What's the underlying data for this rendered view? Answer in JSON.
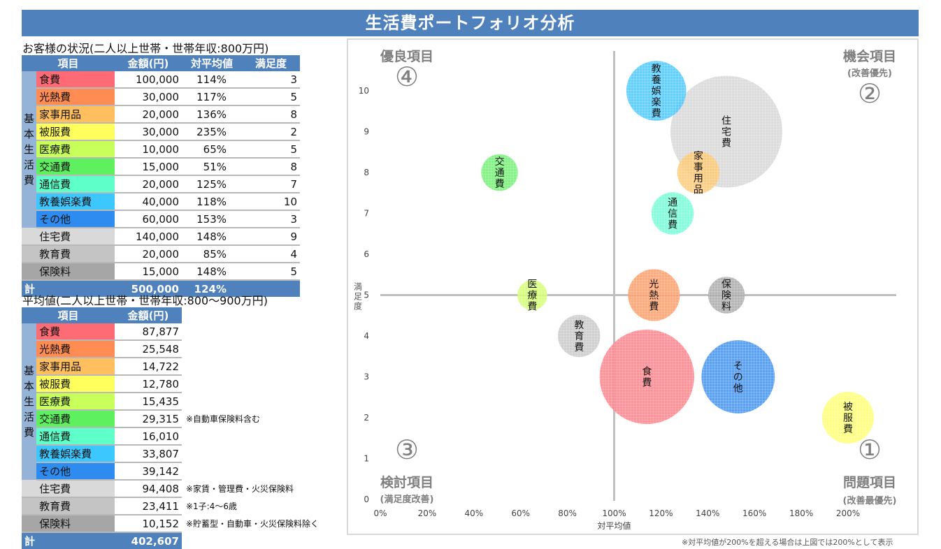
{
  "title": "生活費ポートフォリオ分析",
  "customer": {
    "heading": "お客様の状況(二人以上世帯・世帯年収:800万円)",
    "headers": [
      "項目",
      "金額(円)",
      "対平均値",
      "満足度"
    ],
    "group_label": "基\n本\n生\n活\n費",
    "rows": [
      {
        "name": "食費",
        "amount": "100,000",
        "ratio": "114%",
        "satisfaction": "3",
        "color": "#ff6b74"
      },
      {
        "name": "光熱費",
        "amount": "30,000",
        "ratio": "117%",
        "satisfaction": "5",
        "color": "#ff8c52"
      },
      {
        "name": "家事用品",
        "amount": "20,000",
        "ratio": "136%",
        "satisfaction": "8",
        "color": "#ffbf5e"
      },
      {
        "name": "被服費",
        "amount": "30,000",
        "ratio": "235%",
        "satisfaction": "2",
        "color": "#ffff5e"
      },
      {
        "name": "医療費",
        "amount": "10,000",
        "ratio": "65%",
        "satisfaction": "5",
        "color": "#c8ff5a"
      },
      {
        "name": "交通費",
        "amount": "15,000",
        "ratio": "51%",
        "satisfaction": "8",
        "color": "#5ef05e"
      },
      {
        "name": "通信費",
        "amount": "20,000",
        "ratio": "125%",
        "satisfaction": "7",
        "color": "#5effc8"
      },
      {
        "name": "教養娯楽費",
        "amount": "40,000",
        "ratio": "118%",
        "satisfaction": "10",
        "color": "#3cc8ff"
      },
      {
        "name": "その他",
        "amount": "60,000",
        "ratio": "153%",
        "satisfaction": "3",
        "color": "#2e8bf0"
      },
      {
        "name": "住宅費",
        "amount": "140,000",
        "ratio": "148%",
        "satisfaction": "9",
        "color": "#d9d9d9"
      },
      {
        "name": "教育費",
        "amount": "20,000",
        "ratio": "85%",
        "satisfaction": "4",
        "color": "#c4c4c4"
      },
      {
        "name": "保険料",
        "amount": "15,000",
        "ratio": "148%",
        "satisfaction": "5",
        "color": "#a6a6a6"
      }
    ],
    "total": {
      "label": "計",
      "amount": "500,000",
      "ratio": "124%"
    }
  },
  "average": {
    "heading": "平均値(二人以上世帯・世帯年収:800〜900万円)",
    "headers": [
      "項目",
      "金額(円)"
    ],
    "group_label": "基\n本\n生\n活\n費",
    "rows": [
      {
        "name": "食費",
        "amount": "87,877",
        "note": ""
      },
      {
        "name": "光熱費",
        "amount": "25,548",
        "note": ""
      },
      {
        "name": "家事用品",
        "amount": "14,722",
        "note": ""
      },
      {
        "name": "被服費",
        "amount": "12,780",
        "note": ""
      },
      {
        "name": "医療費",
        "amount": "15,435",
        "note": ""
      },
      {
        "name": "交通費",
        "amount": "29,315",
        "note": "※自動車保険料含む"
      },
      {
        "name": "通信費",
        "amount": "16,010",
        "note": ""
      },
      {
        "name": "教養娯楽費",
        "amount": "33,807",
        "note": ""
      },
      {
        "name": "その他",
        "amount": "39,142",
        "note": ""
      },
      {
        "name": "住宅費",
        "amount": "94,408",
        "note": "※家賃・管理費・火災保険料"
      },
      {
        "name": "教育費",
        "amount": "23,411",
        "note": "※1子:4〜6歳"
      },
      {
        "name": "保険料",
        "amount": "10,152",
        "note": "※貯蓄型・自動車・火災保険料除く"
      }
    ],
    "total": {
      "label": "計",
      "amount": "402,607"
    }
  },
  "chart_data": {
    "type": "scatter",
    "title": "",
    "xlabel": "対平均値",
    "ylabel": "満\n足\n度",
    "xlim": [
      0,
      220
    ],
    "ylim": [
      0,
      10.5
    ],
    "x_ticks": [
      "0%",
      "20%",
      "40%",
      "60%",
      "80%",
      "100%",
      "120%",
      "140%",
      "160%",
      "180%",
      "200%"
    ],
    "x_tick_values": [
      0,
      20,
      40,
      60,
      80,
      100,
      120,
      140,
      160,
      180,
      200
    ],
    "y_ticks": [
      "0",
      "1",
      "2",
      "3",
      "4",
      "5",
      "6",
      "7",
      "8",
      "9",
      "10"
    ],
    "y_tick_values": [
      0,
      1,
      2,
      3,
      4,
      5,
      6,
      7,
      8,
      9,
      10
    ],
    "grid": false,
    "reference_lines": {
      "x": 100,
      "y": 5
    },
    "bubble_size_metric": "金額(円)",
    "series": [
      {
        "name": "食費",
        "x": 114,
        "y": 3,
        "size": 100000,
        "color": "#ff7e86"
      },
      {
        "name": "光熱費",
        "x": 117,
        "y": 5,
        "size": 30000,
        "color": "#ff9a64"
      },
      {
        "name": "家事用品",
        "x": 136,
        "y": 8,
        "size": 20000,
        "color": "#ffc870"
      },
      {
        "name": "被服費",
        "x": 200,
        "y": 2,
        "size": 30000,
        "color": "#ffff70"
      },
      {
        "name": "医療費",
        "x": 65,
        "y": 5,
        "size": 10000,
        "color": "#d2ff6e"
      },
      {
        "name": "交通費",
        "x": 51,
        "y": 8,
        "size": 15000,
        "color": "#70f070"
      },
      {
        "name": "通信費",
        "x": 125,
        "y": 7,
        "size": 20000,
        "color": "#70ffd2"
      },
      {
        "name": "教養娯楽費",
        "x": 118,
        "y": 10,
        "size": 40000,
        "color": "#46c8ff"
      },
      {
        "name": "その他",
        "x": 153,
        "y": 3,
        "size": 60000,
        "color": "#3c8ff0"
      },
      {
        "name": "住宅費",
        "x": 148,
        "y": 9,
        "size": 140000,
        "color": "#d6d6d6"
      },
      {
        "name": "教育費",
        "x": 85,
        "y": 4,
        "size": 20000,
        "color": "#c8c8c8"
      },
      {
        "name": "保険料",
        "x": 148,
        "y": 5,
        "size": 15000,
        "color": "#a8a8a8"
      }
    ],
    "annotations": [
      {
        "quadrant": "top-left",
        "title": "優良項目",
        "sub": "",
        "number": "④"
      },
      {
        "quadrant": "top-right",
        "title": "機会項目",
        "sub": "(改善優先)",
        "number": "②"
      },
      {
        "quadrant": "bottom-left",
        "title": "検討項目",
        "sub": "(満足度改善)",
        "number": "③"
      },
      {
        "quadrant": "bottom-right",
        "title": "問題項目",
        "sub": "(改善最優先)",
        "number": "①"
      }
    ]
  },
  "footnote": "※対平均値が200%を超える場合は上図では200%として表示"
}
